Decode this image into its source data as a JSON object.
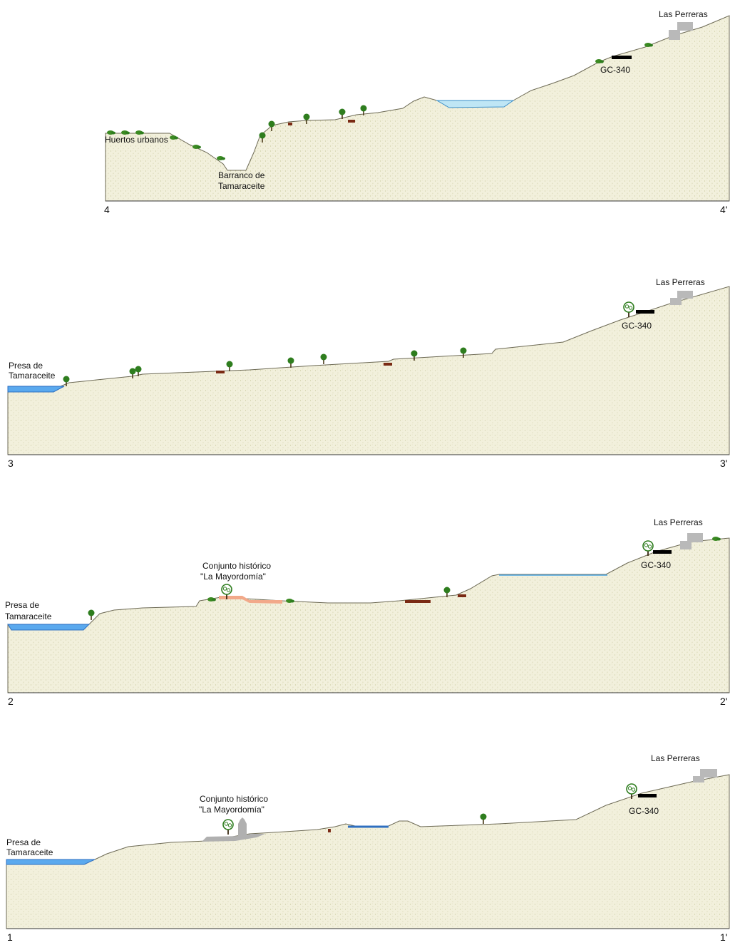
{
  "colors": {
    "terrain_fill": "#f2f0dc",
    "terrain_speckle": "#c8c79a",
    "terrain_edge": "#6d6a55",
    "water": "#5aa9ee",
    "water_edge": "#2f6fc0",
    "pond": "#bfe6f5",
    "tree": "#2e7d1e",
    "building": "#b9b9b9",
    "road": "#000000",
    "wall": "#7a2a14",
    "historic": "#f2a98a"
  },
  "sections": [
    {
      "start_label": "4",
      "end_label": "4'",
      "labels": {
        "huertos": "Huertos urbanos",
        "barranco_1": "Barranco de",
        "barranco_2": "Tamaraceite",
        "road": "GC-340",
        "perreras": "Las Perreras"
      }
    },
    {
      "start_label": "3",
      "end_label": "3'",
      "labels": {
        "presa_1": "Presa de",
        "presa_2": "Tamaraceite",
        "road": "GC-340",
        "perreras": "Las Perreras"
      }
    },
    {
      "start_label": "2",
      "end_label": "2'",
      "labels": {
        "presa_1": "Presa de",
        "presa_2": "Tamaraceite",
        "historic_1": "Conjunto histórico",
        "historic_2": "\"La Mayordomía\"",
        "road": "GC-340",
        "perreras": "Las Perreras"
      }
    },
    {
      "start_label": "1",
      "end_label": "1'",
      "labels": {
        "presa_1": "Presa de",
        "presa_2": "Tamaraceite",
        "historic_1": "Conjunto histórico",
        "historic_2": "\"La Mayordomía\"",
        "road": "GC-340",
        "perreras": "Las Perreras"
      }
    }
  ]
}
